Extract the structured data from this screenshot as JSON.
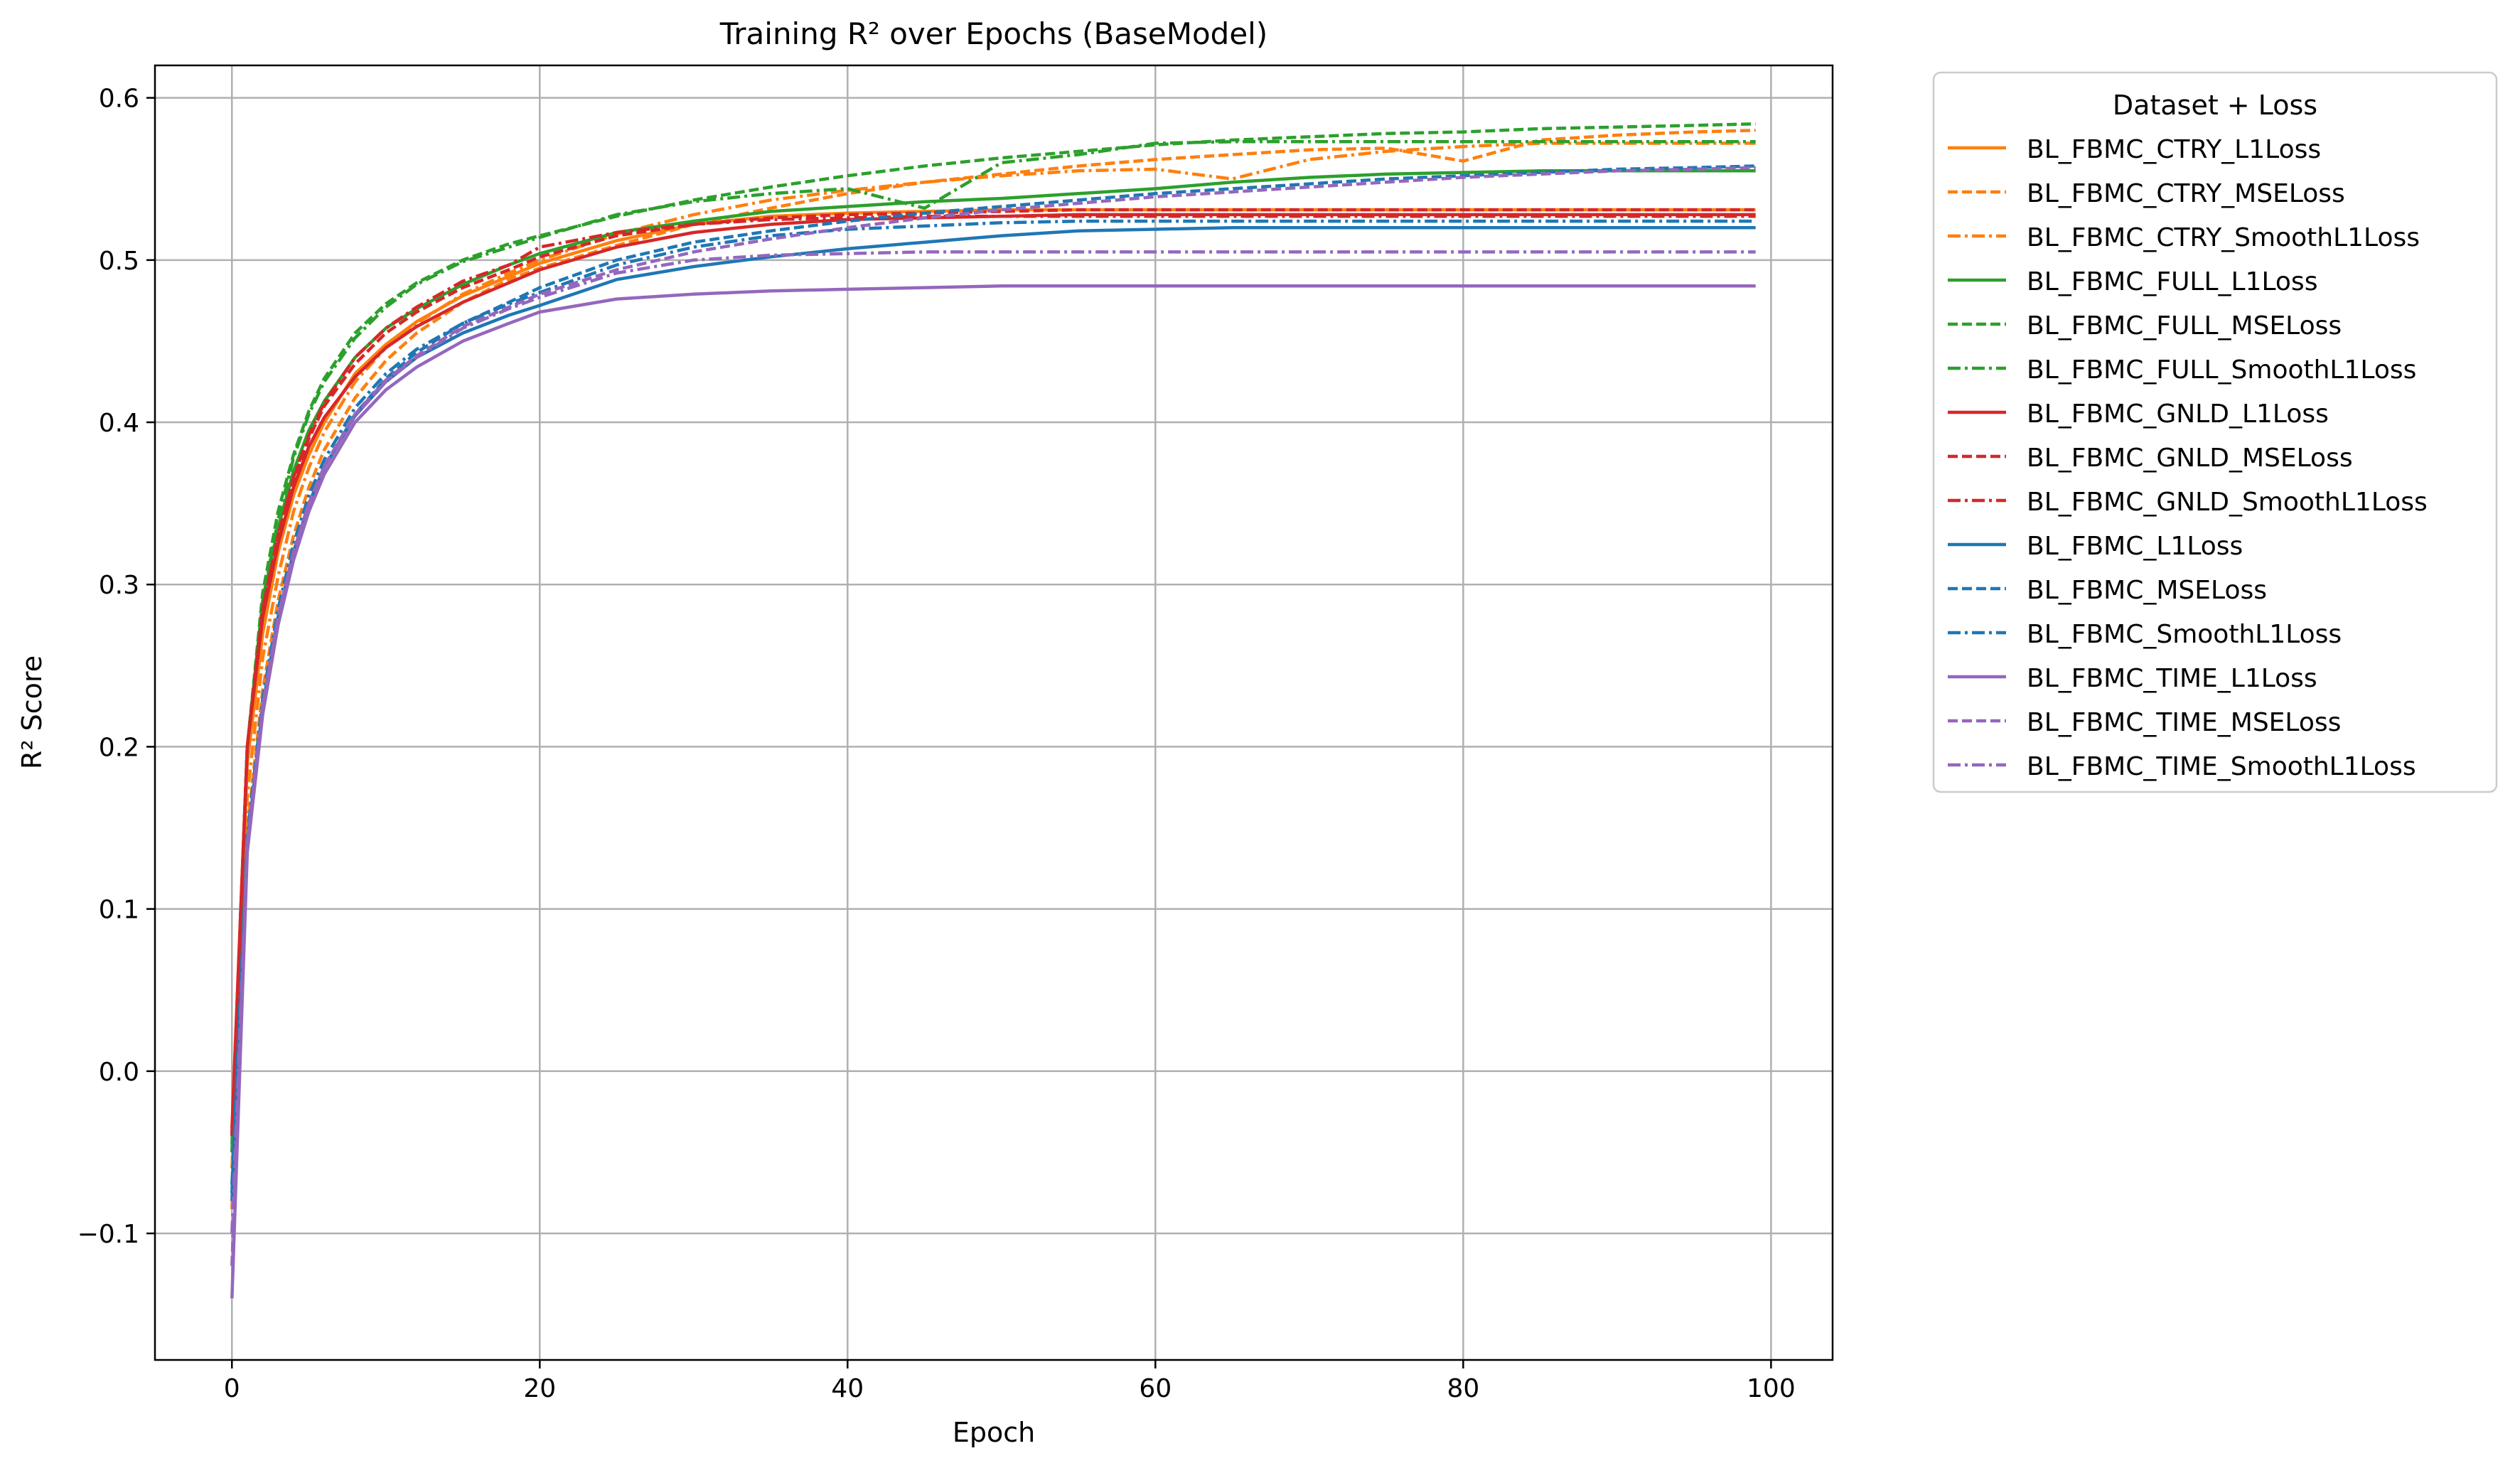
{
  "chart_data": {
    "type": "line",
    "title": "Training R² over Epochs (BaseModel)",
    "xlabel": "Epoch",
    "ylabel": "R² Score",
    "xlim": [
      -5.0,
      104.0
    ],
    "ylim": [
      -0.178,
      0.62
    ],
    "xticks": [
      0,
      20,
      40,
      60,
      80,
      100
    ],
    "yticks": [
      -0.1,
      0.0,
      0.1,
      0.2,
      0.3,
      0.4,
      0.5,
      0.6
    ],
    "grid": true,
    "legend": {
      "title": "Dataset + Loss",
      "placement": "outside right, top"
    },
    "x": [
      0,
      1,
      2,
      3,
      4,
      5,
      6,
      8,
      10,
      12,
      15,
      18,
      20,
      25,
      30,
      35,
      40,
      45,
      50,
      55,
      60,
      65,
      70,
      75,
      80,
      85,
      90,
      95,
      99
    ],
    "series": [
      {
        "name": "BL_FBMC_CTRY_L1Loss",
        "color": "#ff7f0e",
        "linestyle": "solid",
        "values": [
          -0.05,
          0.19,
          0.27,
          0.32,
          0.355,
          0.38,
          0.4,
          0.43,
          0.448,
          0.462,
          0.478,
          0.49,
          0.498,
          0.512,
          0.522,
          0.527,
          0.529,
          0.53,
          0.531,
          0.531,
          0.531,
          0.531,
          0.531,
          0.531,
          0.531,
          0.531,
          0.531,
          0.531,
          0.531
        ]
      },
      {
        "name": "BL_FBMC_CTRY_MSELoss",
        "color": "#ff7f0e",
        "linestyle": "dashed",
        "values": [
          -0.085,
          0.15,
          0.235,
          0.29,
          0.33,
          0.36,
          0.383,
          0.415,
          0.438,
          0.455,
          0.474,
          0.488,
          0.495,
          0.509,
          0.522,
          0.532,
          0.541,
          0.548,
          0.553,
          0.558,
          0.562,
          0.565,
          0.568,
          0.569,
          0.561,
          0.574,
          0.577,
          0.579,
          0.58
        ]
      },
      {
        "name": "BL_FBMC_CTRY_SmoothL1Loss",
        "color": "#ff7f0e",
        "linestyle": "dashdot",
        "values": [
          -0.06,
          0.17,
          0.255,
          0.305,
          0.345,
          0.372,
          0.394,
          0.425,
          0.446,
          0.461,
          0.479,
          0.492,
          0.5,
          0.516,
          0.528,
          0.537,
          0.543,
          0.548,
          0.552,
          0.555,
          0.556,
          0.55,
          0.562,
          0.567,
          0.57,
          0.572,
          0.572,
          0.572,
          0.572
        ]
      },
      {
        "name": "BL_FBMC_FULL_L1Loss",
        "color": "#2ca02c",
        "linestyle": "solid",
        "values": [
          -0.04,
          0.2,
          0.29,
          0.335,
          0.37,
          0.395,
          0.413,
          0.44,
          0.458,
          0.47,
          0.485,
          0.497,
          0.504,
          0.517,
          0.524,
          0.53,
          0.533,
          0.536,
          0.538,
          0.541,
          0.544,
          0.548,
          0.551,
          0.553,
          0.554,
          0.555,
          0.555,
          0.555,
          0.555
        ]
      },
      {
        "name": "BL_FBMC_FULL_MSELoss",
        "color": "#2ca02c",
        "linestyle": "dashed",
        "values": [
          -0.05,
          0.2,
          0.295,
          0.345,
          0.38,
          0.407,
          0.427,
          0.455,
          0.473,
          0.486,
          0.5,
          0.51,
          0.515,
          0.527,
          0.537,
          0.545,
          0.552,
          0.558,
          0.563,
          0.567,
          0.571,
          0.574,
          0.576,
          0.578,
          0.579,
          0.581,
          0.582,
          0.583,
          0.584
        ]
      },
      {
        "name": "BL_FBMC_FULL_SmoothL1Loss",
        "color": "#2ca02c",
        "linestyle": "dashdot",
        "values": [
          -0.045,
          0.2,
          0.29,
          0.34,
          0.378,
          0.405,
          0.425,
          0.452,
          0.471,
          0.485,
          0.499,
          0.508,
          0.514,
          0.528,
          0.536,
          0.541,
          0.544,
          0.532,
          0.56,
          0.565,
          0.572,
          0.573,
          0.573,
          0.573,
          0.573,
          0.573,
          0.573,
          0.573,
          0.573
        ]
      },
      {
        "name": "BL_FBMC_GNLD_L1Loss",
        "color": "#d62728",
        "linestyle": "solid",
        "values": [
          -0.035,
          0.2,
          0.28,
          0.325,
          0.36,
          0.385,
          0.403,
          0.428,
          0.446,
          0.459,
          0.474,
          0.486,
          0.494,
          0.508,
          0.517,
          0.522,
          0.525,
          0.526,
          0.527,
          0.528,
          0.528,
          0.528,
          0.528,
          0.528,
          0.528,
          0.528,
          0.528,
          0.528,
          0.528
        ]
      },
      {
        "name": "BL_FBMC_GNLD_MSELoss",
        "color": "#d62728",
        "linestyle": "dashed",
        "values": [
          -0.04,
          0.2,
          0.285,
          0.33,
          0.365,
          0.39,
          0.41,
          0.436,
          0.455,
          0.468,
          0.483,
          0.494,
          0.502,
          0.515,
          0.522,
          0.526,
          0.528,
          0.529,
          0.53,
          0.531,
          0.531,
          0.531,
          0.531,
          0.531,
          0.531,
          0.531,
          0.531,
          0.531,
          0.531
        ]
      },
      {
        "name": "BL_FBMC_GNLD_SmoothL1Loss",
        "color": "#d62728",
        "linestyle": "dashdot",
        "values": [
          -0.038,
          0.2,
          0.285,
          0.33,
          0.366,
          0.392,
          0.412,
          0.44,
          0.458,
          0.471,
          0.487,
          0.497,
          0.508,
          0.517,
          0.522,
          0.525,
          0.526,
          0.527,
          0.527,
          0.527,
          0.527,
          0.527,
          0.527,
          0.527,
          0.527,
          0.527,
          0.527,
          0.527,
          0.527
        ]
      },
      {
        "name": "BL_FBMC_L1Loss",
        "color": "#1f77b4",
        "linestyle": "solid",
        "values": [
          -0.075,
          0.14,
          0.225,
          0.28,
          0.32,
          0.35,
          0.372,
          0.404,
          0.425,
          0.44,
          0.455,
          0.466,
          0.472,
          0.488,
          0.496,
          0.502,
          0.507,
          0.511,
          0.515,
          0.518,
          0.519,
          0.52,
          0.52,
          0.52,
          0.52,
          0.52,
          0.52,
          0.52,
          0.52
        ]
      },
      {
        "name": "BL_FBMC_MSELoss",
        "color": "#1f77b4",
        "linestyle": "dashed",
        "values": [
          -0.08,
          0.14,
          0.225,
          0.28,
          0.32,
          0.35,
          0.372,
          0.405,
          0.427,
          0.443,
          0.461,
          0.474,
          0.483,
          0.5,
          0.511,
          0.518,
          0.524,
          0.529,
          0.533,
          0.537,
          0.541,
          0.544,
          0.547,
          0.55,
          0.552,
          0.554,
          0.556,
          0.557,
          0.558
        ]
      },
      {
        "name": "BL_FBMC_SmoothL1Loss",
        "color": "#1f77b4",
        "linestyle": "dashdot",
        "values": [
          -0.07,
          0.145,
          0.23,
          0.285,
          0.325,
          0.355,
          0.377,
          0.409,
          0.43,
          0.445,
          0.461,
          0.473,
          0.48,
          0.497,
          0.508,
          0.515,
          0.519,
          0.521,
          0.523,
          0.524,
          0.524,
          0.524,
          0.524,
          0.524,
          0.524,
          0.524,
          0.524,
          0.524,
          0.524
        ]
      },
      {
        "name": "BL_FBMC_TIME_L1Loss",
        "color": "#9467bd",
        "linestyle": "solid",
        "values": [
          -0.14,
          0.135,
          0.22,
          0.275,
          0.315,
          0.345,
          0.368,
          0.4,
          0.42,
          0.434,
          0.45,
          0.461,
          0.468,
          0.476,
          0.479,
          0.481,
          0.482,
          0.483,
          0.484,
          0.484,
          0.484,
          0.484,
          0.484,
          0.484,
          0.484,
          0.484,
          0.484,
          0.484,
          0.484
        ]
      },
      {
        "name": "BL_FBMC_TIME_MSELoss",
        "color": "#9467bd",
        "linestyle": "dashed",
        "values": [
          -0.12,
          0.14,
          0.225,
          0.28,
          0.32,
          0.35,
          0.373,
          0.405,
          0.426,
          0.441,
          0.459,
          0.471,
          0.479,
          0.494,
          0.505,
          0.513,
          0.52,
          0.526,
          0.531,
          0.535,
          0.539,
          0.542,
          0.545,
          0.548,
          0.551,
          0.553,
          0.555,
          0.556,
          0.557
        ]
      },
      {
        "name": "BL_FBMC_TIME_SmoothL1Loss",
        "color": "#9467bd",
        "linestyle": "dashdot",
        "values": [
          -0.1,
          0.14,
          0.225,
          0.28,
          0.32,
          0.35,
          0.372,
          0.404,
          0.425,
          0.44,
          0.458,
          0.47,
          0.477,
          0.492,
          0.5,
          0.503,
          0.504,
          0.505,
          0.505,
          0.505,
          0.505,
          0.505,
          0.505,
          0.505,
          0.505,
          0.505,
          0.505,
          0.505,
          0.505
        ]
      }
    ]
  }
}
